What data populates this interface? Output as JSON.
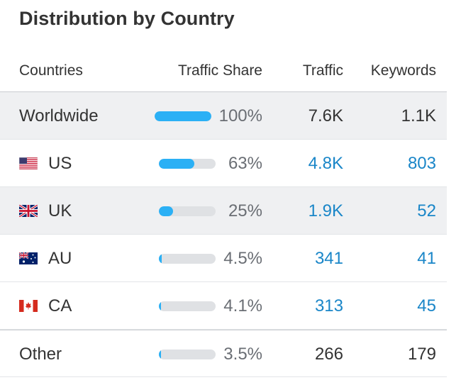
{
  "widget": {
    "title": "Distribution by Country",
    "columns": {
      "countries": "Countries",
      "traffic_share": "Traffic Share",
      "traffic": "Traffic",
      "keywords": "Keywords"
    },
    "accent_color": "#2bb0f5",
    "link_color": "#1a86c8",
    "rows": [
      {
        "country": "Worldwide",
        "flag": "",
        "share_label": "100%",
        "share": 1.0,
        "traffic": "7.6K",
        "keywords": "1.1K",
        "linked": false
      },
      {
        "country": "US",
        "flag": "us-flag-icon",
        "share_label": "63%",
        "share": 0.63,
        "traffic": "4.8K",
        "keywords": "803",
        "linked": true
      },
      {
        "country": "UK",
        "flag": "uk-flag-icon",
        "share_label": "25%",
        "share": 0.25,
        "traffic": "1.9K",
        "keywords": "52",
        "linked": true
      },
      {
        "country": "AU",
        "flag": "au-flag-icon",
        "share_label": "4.5%",
        "share": 0.045,
        "traffic": "341",
        "keywords": "41",
        "linked": true
      },
      {
        "country": "CA",
        "flag": "ca-flag-icon",
        "share_label": "4.1%",
        "share": 0.041,
        "traffic": "313",
        "keywords": "45",
        "linked": true
      },
      {
        "country": "Other",
        "flag": "",
        "share_label": "3.5%",
        "share": 0.035,
        "traffic": "266",
        "keywords": "179",
        "linked": false
      }
    ]
  }
}
